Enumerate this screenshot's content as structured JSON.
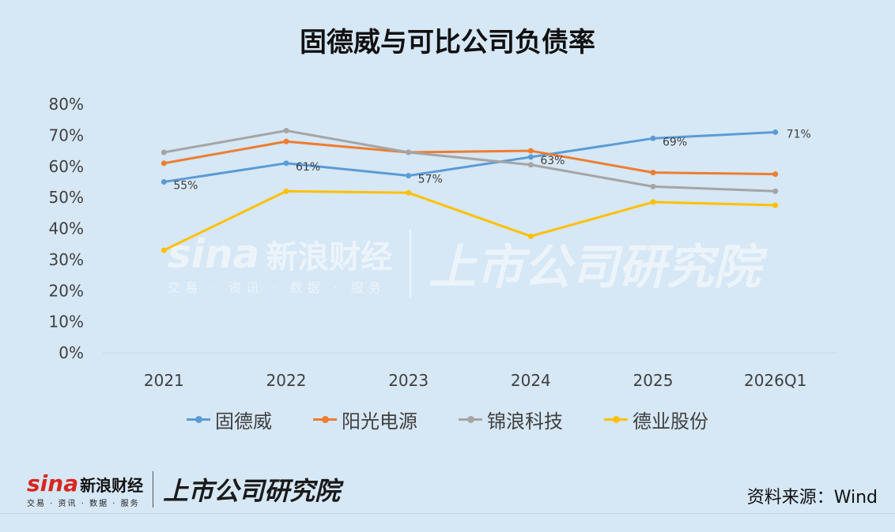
{
  "title": "固德威与可比公司负债率",
  "source": "资料来源：Wind",
  "watermark": {
    "sina": "sina",
    "name": "新浪财经",
    "sub": "交易 · 资讯 · 数据 · 服务",
    "special": "上市公司研究院"
  },
  "chart_data": {
    "type": "line",
    "categories": [
      "2021",
      "2022",
      "2023",
      "2024",
      "2025",
      "2026Q1"
    ],
    "ylim": [
      0,
      80
    ],
    "yticks": [
      0,
      10,
      20,
      30,
      40,
      50,
      60,
      70,
      80
    ],
    "y_tick_labels": [
      "0%",
      "10%",
      "20%",
      "30%",
      "40%",
      "50%",
      "60%",
      "70%",
      "80%"
    ],
    "grid": false,
    "legend_position": "bottom",
    "series": [
      {
        "name": "固德威",
        "color": "#5b9bd5",
        "values": [
          55,
          61,
          57,
          63,
          69,
          71
        ],
        "labels": [
          "55%",
          "61%",
          "57%",
          "63%",
          "69%",
          "71%"
        ]
      },
      {
        "name": "阳光电源",
        "color": "#ed7d31",
        "values": [
          61,
          68,
          64.5,
          65,
          58,
          57.5
        ]
      },
      {
        "name": "锦浪科技",
        "color": "#a5a5a5",
        "values": [
          64.5,
          71.5,
          64.5,
          60.5,
          53.5,
          52
        ]
      },
      {
        "name": "德业股份",
        "color": "#ffc000",
        "values": [
          33,
          52,
          51.5,
          37.5,
          48.5,
          47.5
        ]
      }
    ]
  }
}
